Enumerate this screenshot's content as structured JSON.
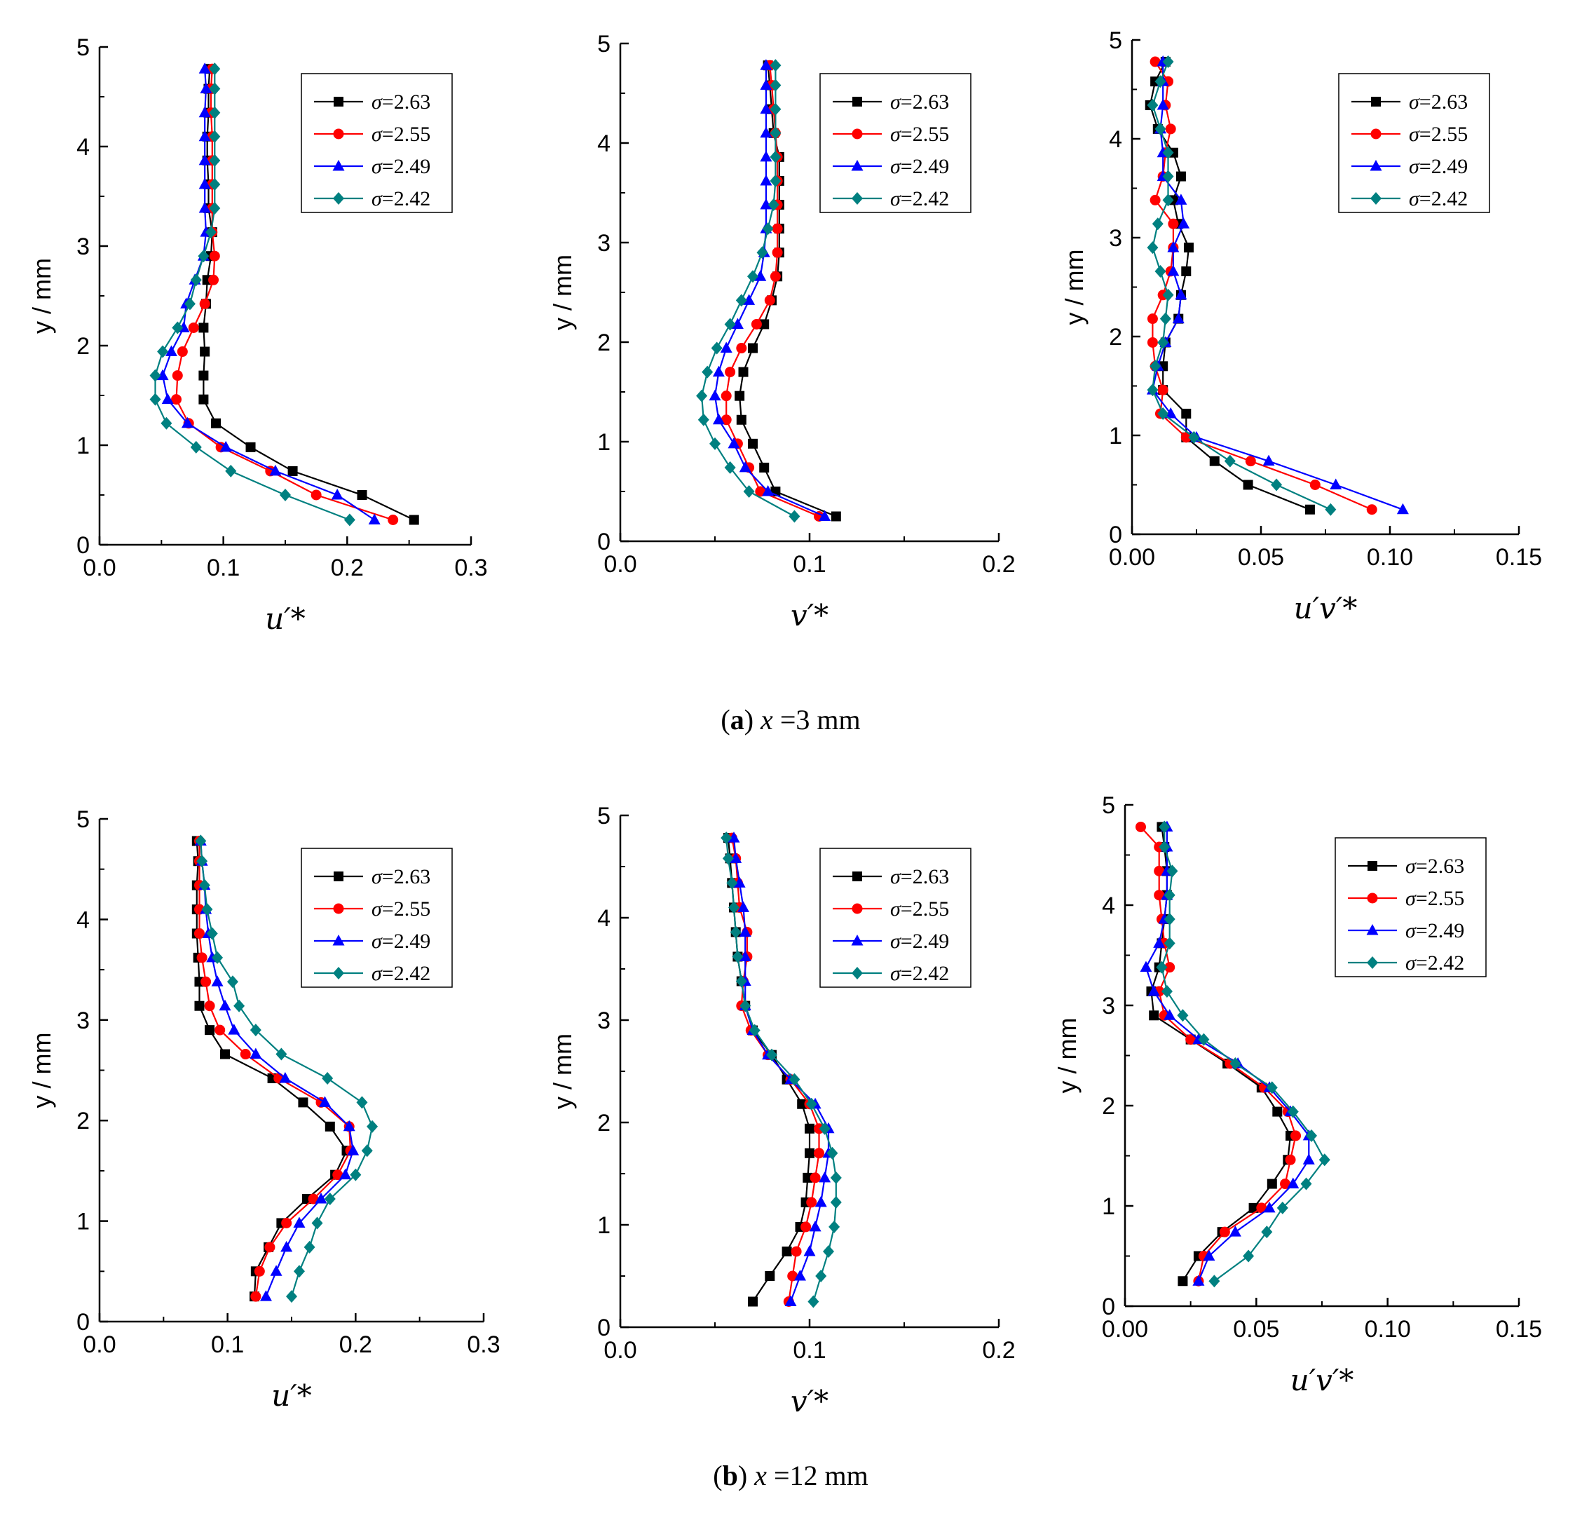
{
  "captions": [
    {
      "letter": "a",
      "var": "x",
      "rest": " =3 mm"
    },
    {
      "letter": "b",
      "var": "x",
      "rest": " =12 mm"
    }
  ],
  "series_styles": [
    {
      "color": "#000000",
      "marker": "square"
    },
    {
      "color": "#ff0000",
      "marker": "circle"
    },
    {
      "color": "#0000ff",
      "marker": "triangle"
    },
    {
      "color": "#008080",
      "marker": "diamond"
    }
  ],
  "chart_data": [
    {
      "type": "line",
      "panel": "a-u",
      "title": "",
      "xlabel": "u′*",
      "ylabel": "y / mm",
      "xlim": [
        0,
        0.3
      ],
      "ylim": [
        0,
        5
      ],
      "xticks": [
        "0.0",
        "0.1",
        "0.2",
        "0.3"
      ],
      "yticks": [
        "0",
        "1",
        "2",
        "3",
        "4",
        "5"
      ],
      "legend": "top-right",
      "y": [
        0.25,
        0.5,
        0.74,
        0.98,
        1.22,
        1.46,
        1.7,
        1.94,
        2.18,
        2.42,
        2.66,
        2.9,
        3.14,
        3.38,
        3.62,
        3.86,
        4.1,
        4.34,
        4.58,
        4.78
      ],
      "series": [
        {
          "name": "σ=2.63",
          "values": [
            0.254,
            0.212,
            0.156,
            0.122,
            0.094,
            0.084,
            0.084,
            0.085,
            0.084,
            0.086,
            0.087,
            0.09,
            0.091,
            0.088,
            0.088,
            0.087,
            0.087,
            0.088,
            0.088,
            0.089
          ]
        },
        {
          "name": "σ=2.55",
          "values": [
            0.237,
            0.175,
            0.138,
            0.098,
            0.072,
            0.062,
            0.063,
            0.067,
            0.076,
            0.085,
            0.092,
            0.093,
            0.091,
            0.091,
            0.091,
            0.091,
            0.091,
            0.09,
            0.09,
            0.091
          ]
        },
        {
          "name": "σ=2.49",
          "values": [
            0.222,
            0.192,
            0.142,
            0.102,
            0.071,
            0.055,
            0.051,
            0.058,
            0.068,
            0.07,
            0.077,
            0.084,
            0.086,
            0.085,
            0.085,
            0.085,
            0.085,
            0.085,
            0.086,
            0.085
          ]
        },
        {
          "name": "σ=2.42",
          "values": [
            0.202,
            0.15,
            0.106,
            0.078,
            0.054,
            0.045,
            0.045,
            0.051,
            0.063,
            0.073,
            0.078,
            0.084,
            0.09,
            0.093,
            0.093,
            0.093,
            0.093,
            0.093,
            0.093,
            0.093
          ]
        }
      ]
    },
    {
      "type": "line",
      "panel": "a-v",
      "title": "",
      "xlabel": "v′*",
      "ylabel": "y / mm",
      "xlim": [
        0,
        0.2
      ],
      "ylim": [
        0,
        5
      ],
      "xticks": [
        "0.0",
        "0.1",
        "0.2"
      ],
      "yticks": [
        "0",
        "1",
        "2",
        "3",
        "4",
        "5"
      ],
      "legend": "top-right",
      "y": [
        0.25,
        0.5,
        0.74,
        0.98,
        1.22,
        1.46,
        1.7,
        1.94,
        2.18,
        2.42,
        2.66,
        2.9,
        3.14,
        3.38,
        3.62,
        3.86,
        4.1,
        4.34,
        4.58,
        4.78
      ],
      "series": [
        {
          "name": "σ=2.63",
          "values": [
            0.114,
            0.082,
            0.076,
            0.07,
            0.064,
            0.063,
            0.065,
            0.07,
            0.076,
            0.08,
            0.083,
            0.084,
            0.084,
            0.084,
            0.084,
            0.084,
            0.081,
            0.08,
            0.079,
            0.078
          ]
        },
        {
          "name": "σ=2.55",
          "values": [
            0.105,
            0.074,
            0.068,
            0.062,
            0.056,
            0.056,
            0.058,
            0.064,
            0.072,
            0.079,
            0.082,
            0.083,
            0.083,
            0.083,
            0.083,
            0.083,
            0.082,
            0.081,
            0.08,
            0.079
          ]
        },
        {
          "name": "σ=2.49",
          "values": [
            0.108,
            0.078,
            0.066,
            0.06,
            0.052,
            0.05,
            0.052,
            0.056,
            0.062,
            0.068,
            0.074,
            0.076,
            0.077,
            0.077,
            0.077,
            0.077,
            0.077,
            0.077,
            0.077,
            0.077
          ]
        },
        {
          "name": "σ=2.42",
          "values": [
            0.092,
            0.068,
            0.058,
            0.05,
            0.044,
            0.043,
            0.046,
            0.051,
            0.058,
            0.064,
            0.07,
            0.075,
            0.078,
            0.081,
            0.082,
            0.082,
            0.082,
            0.082,
            0.082,
            0.082
          ]
        }
      ]
    },
    {
      "type": "line",
      "panel": "a-uv",
      "title": "",
      "xlabel": "u′v′*",
      "ylabel": "y / mm",
      "xlim": [
        0,
        0.15
      ],
      "ylim": [
        0,
        5
      ],
      "xticks": [
        "0.00",
        "0.05",
        "0.10",
        "0.15"
      ],
      "yticks": [
        "0",
        "1",
        "2",
        "3",
        "4",
        "5"
      ],
      "legend": "top-right",
      "y": [
        0.25,
        0.5,
        0.74,
        0.98,
        1.22,
        1.46,
        1.7,
        1.94,
        2.18,
        2.42,
        2.66,
        2.9,
        3.14,
        3.38,
        3.62,
        3.86,
        4.1,
        4.34,
        4.58,
        4.78
      ],
      "series": [
        {
          "name": "σ=2.63",
          "values": [
            0.069,
            0.045,
            0.032,
            0.021,
            0.021,
            0.012,
            0.012,
            0.013,
            0.018,
            0.019,
            0.021,
            0.022,
            0.018,
            0.016,
            0.019,
            0.016,
            0.01,
            0.007,
            0.009,
            0.013
          ]
        },
        {
          "name": "σ=2.55",
          "values": [
            0.093,
            0.071,
            0.046,
            0.021,
            0.011,
            0.012,
            0.009,
            0.008,
            0.008,
            0.012,
            0.015,
            0.016,
            0.016,
            0.009,
            0.012,
            0.013,
            0.015,
            0.013,
            0.014,
            0.009
          ]
        },
        {
          "name": "σ=2.49",
          "values": [
            0.105,
            0.079,
            0.053,
            0.025,
            0.015,
            0.008,
            0.01,
            0.013,
            0.018,
            0.019,
            0.016,
            0.016,
            0.02,
            0.019,
            0.012,
            0.012,
            0.011,
            0.012,
            0.012,
            0.012
          ]
        },
        {
          "name": "σ=2.42",
          "values": [
            0.077,
            0.056,
            0.038,
            0.024,
            0.012,
            0.008,
            0.009,
            0.012,
            0.013,
            0.014,
            0.011,
            0.008,
            0.01,
            0.014,
            0.014,
            0.014,
            0.011,
            0.008,
            0.011,
            0.014
          ]
        }
      ]
    },
    {
      "type": "line",
      "panel": "b-u",
      "title": "",
      "xlabel": "u′*",
      "ylabel": "y / mm",
      "xlim": [
        0,
        0.3
      ],
      "ylim": [
        0,
        5
      ],
      "xticks": [
        "0.0",
        "0.1",
        "0.2",
        "0.3"
      ],
      "yticks": [
        "0",
        "1",
        "2",
        "3",
        "4",
        "5"
      ],
      "legend": "top-right",
      "y": [
        0.25,
        0.5,
        0.74,
        0.98,
        1.22,
        1.46,
        1.7,
        1.94,
        2.18,
        2.42,
        2.66,
        2.9,
        3.14,
        3.38,
        3.62,
        3.86,
        4.1,
        4.34,
        4.58,
        4.78
      ],
      "series": [
        {
          "name": "σ=2.63",
          "values": [
            0.121,
            0.122,
            0.132,
            0.142,
            0.162,
            0.184,
            0.193,
            0.18,
            0.159,
            0.135,
            0.098,
            0.086,
            0.078,
            0.078,
            0.077,
            0.076,
            0.076,
            0.076,
            0.077,
            0.076
          ]
        },
        {
          "name": "σ=2.55",
          "values": [
            0.122,
            0.125,
            0.133,
            0.146,
            0.167,
            0.186,
            0.196,
            0.195,
            0.173,
            0.14,
            0.114,
            0.094,
            0.086,
            0.083,
            0.08,
            0.078,
            0.078,
            0.078,
            0.078,
            0.078
          ]
        },
        {
          "name": "σ=2.49",
          "values": [
            0.13,
            0.138,
            0.146,
            0.156,
            0.173,
            0.192,
            0.198,
            0.195,
            0.176,
            0.145,
            0.122,
            0.105,
            0.098,
            0.092,
            0.088,
            0.085,
            0.083,
            0.082,
            0.08,
            0.079
          ]
        },
        {
          "name": "σ=2.42",
          "values": [
            0.15,
            0.156,
            0.164,
            0.17,
            0.18,
            0.2,
            0.209,
            0.213,
            0.205,
            0.178,
            0.142,
            0.122,
            0.109,
            0.104,
            0.092,
            0.088,
            0.084,
            0.082,
            0.08,
            0.079
          ]
        }
      ]
    },
    {
      "type": "line",
      "panel": "b-v",
      "title": "",
      "xlabel": "v′*",
      "ylabel": "y / mm",
      "xlim": [
        0,
        0.2
      ],
      "ylim": [
        0,
        5
      ],
      "xticks": [
        "0.0",
        "0.1",
        "0.2"
      ],
      "yticks": [
        "0",
        "1",
        "2",
        "3",
        "4",
        "5"
      ],
      "legend": "top-right",
      "y": [
        0.25,
        0.5,
        0.74,
        0.98,
        1.22,
        1.46,
        1.7,
        1.94,
        2.18,
        2.42,
        2.66,
        2.9,
        3.14,
        3.38,
        3.62,
        3.86,
        4.1,
        4.34,
        4.58,
        4.78
      ],
      "series": [
        {
          "name": "σ=2.63",
          "values": [
            0.07,
            0.079,
            0.088,
            0.095,
            0.098,
            0.099,
            0.1,
            0.1,
            0.096,
            0.088,
            0.08,
            0.07,
            0.066,
            0.064,
            0.062,
            0.061,
            0.06,
            0.059,
            0.058,
            0.057
          ]
        },
        {
          "name": "σ=2.55",
          "values": [
            0.089,
            0.091,
            0.093,
            0.098,
            0.101,
            0.103,
            0.105,
            0.105,
            0.1,
            0.09,
            0.078,
            0.069,
            0.064,
            0.065,
            0.067,
            0.067,
            0.063,
            0.062,
            0.061,
            0.059
          ]
        },
        {
          "name": "σ=2.49",
          "values": [
            0.09,
            0.095,
            0.1,
            0.103,
            0.106,
            0.108,
            0.11,
            0.11,
            0.103,
            0.09,
            0.078,
            0.07,
            0.066,
            0.066,
            0.066,
            0.066,
            0.065,
            0.063,
            0.061,
            0.06
          ]
        },
        {
          "name": "σ=2.42",
          "values": [
            0.102,
            0.106,
            0.11,
            0.113,
            0.114,
            0.114,
            0.112,
            0.108,
            0.101,
            0.092,
            0.08,
            0.071,
            0.066,
            0.064,
            0.062,
            0.061,
            0.06,
            0.059,
            0.057,
            0.056
          ]
        }
      ]
    },
    {
      "type": "line",
      "panel": "b-uv",
      "title": "",
      "xlabel": "u′v′*",
      "ylabel": "y / mm",
      "xlim": [
        0,
        0.15
      ],
      "ylim": [
        0,
        5
      ],
      "xticks": [
        "0.00",
        "0.05",
        "0.10",
        "0.15"
      ],
      "yticks": [
        "0",
        "1",
        "2",
        "3",
        "4",
        "5"
      ],
      "legend": "top-right",
      "y": [
        0.25,
        0.5,
        0.74,
        0.98,
        1.22,
        1.46,
        1.7,
        1.94,
        2.18,
        2.42,
        2.66,
        2.9,
        3.14,
        3.38,
        3.62,
        3.86,
        4.1,
        4.34,
        4.58,
        4.78
      ],
      "series": [
        {
          "name": "σ=2.63",
          "values": [
            0.022,
            0.028,
            0.037,
            0.049,
            0.056,
            0.062,
            0.063,
            0.058,
            0.052,
            0.039,
            0.025,
            0.011,
            0.01,
            0.013,
            0.014,
            0.015,
            0.016,
            0.016,
            0.015,
            0.014
          ]
        },
        {
          "name": "σ=2.55",
          "values": [
            0.028,
            0.03,
            0.038,
            0.052,
            0.061,
            0.063,
            0.065,
            0.062,
            0.053,
            0.04,
            0.025,
            0.015,
            0.013,
            0.017,
            0.015,
            0.014,
            0.013,
            0.013,
            0.013,
            0.006
          ]
        },
        {
          "name": "σ=2.49",
          "values": [
            0.028,
            0.032,
            0.042,
            0.055,
            0.064,
            0.07,
            0.07,
            0.063,
            0.055,
            0.043,
            0.028,
            0.017,
            0.011,
            0.008,
            0.013,
            0.015,
            0.016,
            0.016,
            0.016,
            0.016
          ]
        },
        {
          "name": "σ=2.42",
          "values": [
            0.034,
            0.047,
            0.054,
            0.06,
            0.069,
            0.076,
            0.071,
            0.064,
            0.056,
            0.042,
            0.03,
            0.022,
            0.016,
            0.014,
            0.017,
            0.017,
            0.017,
            0.018,
            0.015,
            0.015
          ]
        }
      ]
    }
  ]
}
